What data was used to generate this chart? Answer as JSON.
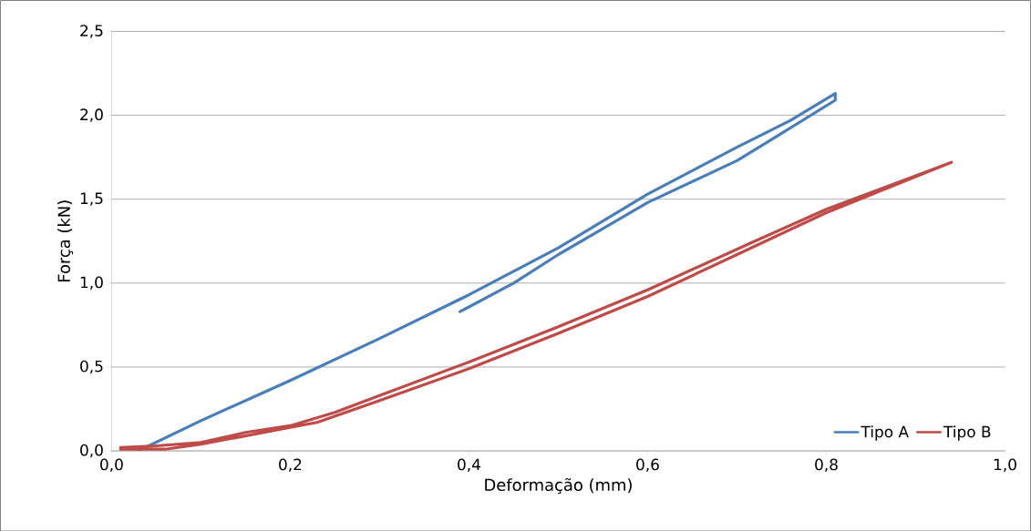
{
  "chart_data": {
    "type": "line",
    "xlabel": "Deformação (mm)",
    "ylabel": "Força (kN)",
    "xlim": [
      0,
      1
    ],
    "ylim": [
      0,
      2.5
    ],
    "xticks": [
      {
        "value": 0,
        "label": "0,0"
      },
      {
        "value": 0.2,
        "label": "0,2"
      },
      {
        "value": 0.4,
        "label": "0,4"
      },
      {
        "value": 0.6,
        "label": "0,6"
      },
      {
        "value": 0.8,
        "label": "0,8"
      },
      {
        "value": 1,
        "label": "1,0"
      }
    ],
    "yticks": [
      {
        "value": 0,
        "label": "0,0"
      },
      {
        "value": 0.5,
        "label": "0,5"
      },
      {
        "value": 1,
        "label": "1,0"
      },
      {
        "value": 1.5,
        "label": "1,5"
      },
      {
        "value": 2,
        "label": "2,0"
      },
      {
        "value": 2.5,
        "label": "2,5"
      }
    ],
    "grid": "y",
    "legend": "bottom right",
    "marker": "none",
    "line_style": "solid",
    "series": [
      {
        "name": "Tipo A",
        "color": "#4a7ebb",
        "x": [
          0.03,
          0.1,
          0.2,
          0.3,
          0.4,
          0.5,
          0.6,
          0.7,
          0.76,
          0.81,
          0.81,
          0.74,
          0.7,
          0.6,
          0.5,
          0.45,
          0.39
        ],
        "values": [
          0,
          0.18,
          0.42,
          0.67,
          0.93,
          1.21,
          1.53,
          1.81,
          1.97,
          2.13,
          2.09,
          1.86,
          1.73,
          1.48,
          1.17,
          1.0,
          0.83
        ]
      },
      {
        "name": "Tipo B",
        "color": "#be4b48",
        "x": [
          0.01,
          0.06,
          0.1,
          0.14,
          0.2,
          0.23,
          0.3,
          0.4,
          0.5,
          0.6,
          0.7,
          0.8,
          0.94,
          0.8,
          0.72,
          0.6,
          0.5,
          0.4,
          0.3,
          0.25,
          0.2,
          0.15,
          0.1,
          0.05,
          0.01
        ],
        "values": [
          0.01,
          0.01,
          0.04,
          0.08,
          0.14,
          0.17,
          0.3,
          0.49,
          0.7,
          0.92,
          1.17,
          1.42,
          1.72,
          1.44,
          1.25,
          0.96,
          0.74,
          0.53,
          0.33,
          0.23,
          0.15,
          0.11,
          0.05,
          0.03,
          0.02
        ]
      }
    ]
  }
}
